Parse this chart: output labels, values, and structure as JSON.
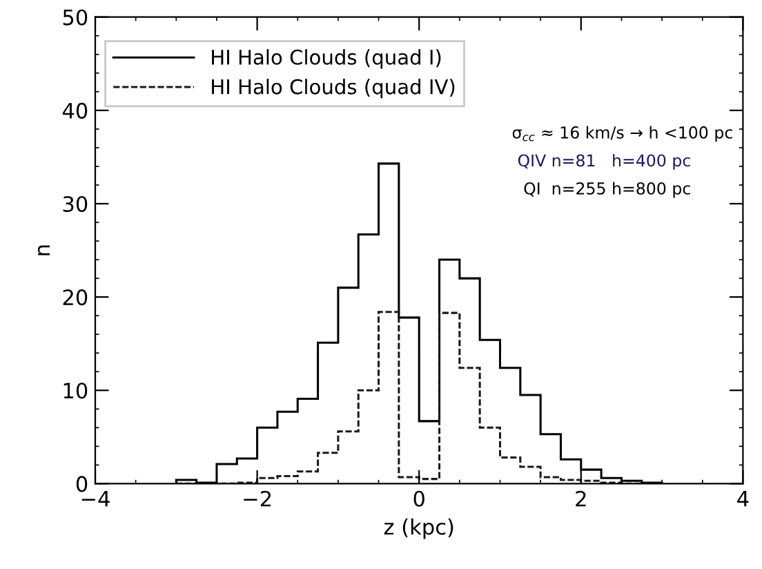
{
  "chart_data": {
    "type": "histogram",
    "xlabel": "z (kpc)",
    "ylabel": "n",
    "bins": [
      -3.0,
      -2.75,
      -2.5,
      -2.25,
      -2.0,
      -1.75,
      -1.5,
      -1.25,
      -1.0,
      -0.75,
      -0.5,
      -0.25,
      0.0,
      0.25,
      0.5,
      0.75,
      1.0,
      1.25,
      1.5,
      1.75,
      2.0,
      2.25,
      2.5,
      2.75,
      3.0
    ],
    "series": [
      {
        "name": "HI Halo Clouds (quad I)",
        "color": "#000000",
        "line_style": "solid",
        "values": [
          0.4,
          0.1,
          2.1,
          2.7,
          6.0,
          7.7,
          9.1,
          15.1,
          21.0,
          26.7,
          34.3,
          17.8,
          6.7,
          24.0,
          22.0,
          15.4,
          12.4,
          9.5,
          5.3,
          2.6,
          1.5,
          0.6,
          0.3,
          0.1
        ]
      },
      {
        "name": "HI Halo Clouds (quad IV)",
        "color": "#1a1a1a",
        "line_style": "dashed",
        "values": [
          0,
          0,
          0,
          0.1,
          0.6,
          0.8,
          1.3,
          3.3,
          5.6,
          10.0,
          18.4,
          0.7,
          0.5,
          18.3,
          12.4,
          6.0,
          2.8,
          1.8,
          0.7,
          0.4,
          0.3,
          0.1,
          0,
          0
        ]
      }
    ],
    "xlim": [
      -4,
      4
    ],
    "xticks": [
      {
        "value": -4,
        "label": "−4"
      },
      {
        "value": -2,
        "label": "−2"
      },
      0,
      2,
      4
    ],
    "ylim": [
      0,
      50
    ],
    "yticks": [
      0,
      10,
      20,
      30,
      40,
      50
    ],
    "grid": false,
    "legend": "top left",
    "annotations": [
      "σ$_{cc}$ ≈ 16 km/s → h <100 pc",
      "QIV n=81   h=400 pc",
      "QI  n=255 h=800 pc"
    ]
  }
}
